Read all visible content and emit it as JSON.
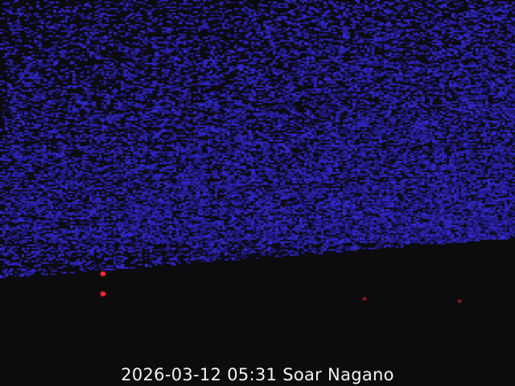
{
  "caption": "2026-03-12 05:31 Soar Nagano",
  "colors": {
    "sky_noise": "#3a2fd0",
    "background": "#0c0b0d",
    "lights": "#ff2a3a"
  }
}
